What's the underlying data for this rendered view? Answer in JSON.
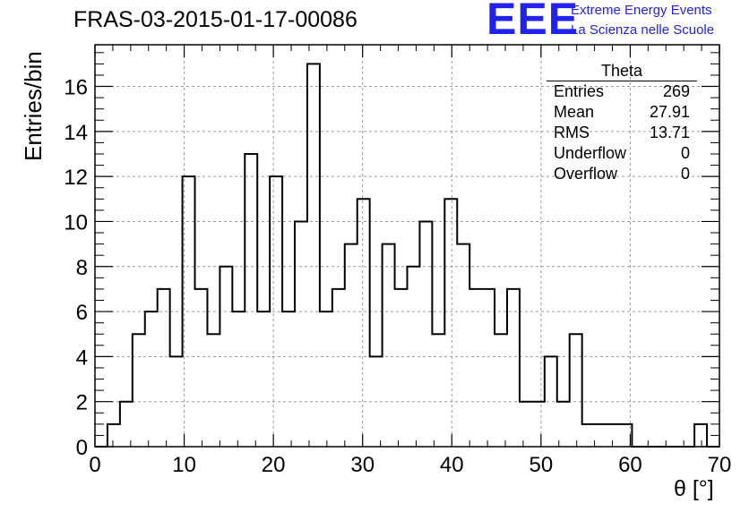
{
  "title": "FRAS-03-2015-01-17-00086",
  "logo": {
    "mark": "EEE",
    "line1": "Extreme Energy Events",
    "line2": "La Scienza nelle Scuole",
    "color": "#2222ee"
  },
  "stats_box": {
    "title": "Theta",
    "rows": [
      {
        "label": "Entries",
        "value": "269"
      },
      {
        "label": "Mean",
        "value": "27.91"
      },
      {
        "label": "RMS",
        "value": "13.71"
      },
      {
        "label": "Underflow",
        "value": "0"
      },
      {
        "label": "Overflow",
        "value": "0"
      }
    ]
  },
  "chart_data": {
    "type": "histogram",
    "xlabel": "θ [°]",
    "ylabel": "Entries/bin",
    "xlim": [
      0,
      70
    ],
    "ylim": [
      0,
      17.85
    ],
    "x_ticks": [
      0,
      10,
      20,
      30,
      40,
      50,
      60,
      70
    ],
    "y_ticks": [
      0,
      2,
      4,
      6,
      8,
      10,
      12,
      14,
      16
    ],
    "grid": true,
    "bin_width": 1.4,
    "bin_edges_start": 0,
    "values": [
      0,
      1,
      2,
      5,
      6,
      7,
      4,
      12,
      7,
      5,
      8,
      6,
      13,
      6,
      12,
      6,
      10,
      17,
      6,
      7,
      9,
      11,
      4,
      9,
      7,
      8,
      10,
      5,
      11,
      9,
      7,
      7,
      5,
      7,
      2,
      2,
      4,
      2,
      5,
      1,
      1,
      1,
      1,
      0,
      0,
      0,
      0,
      0,
      1,
      0
    ],
    "line_color": "#000000"
  }
}
